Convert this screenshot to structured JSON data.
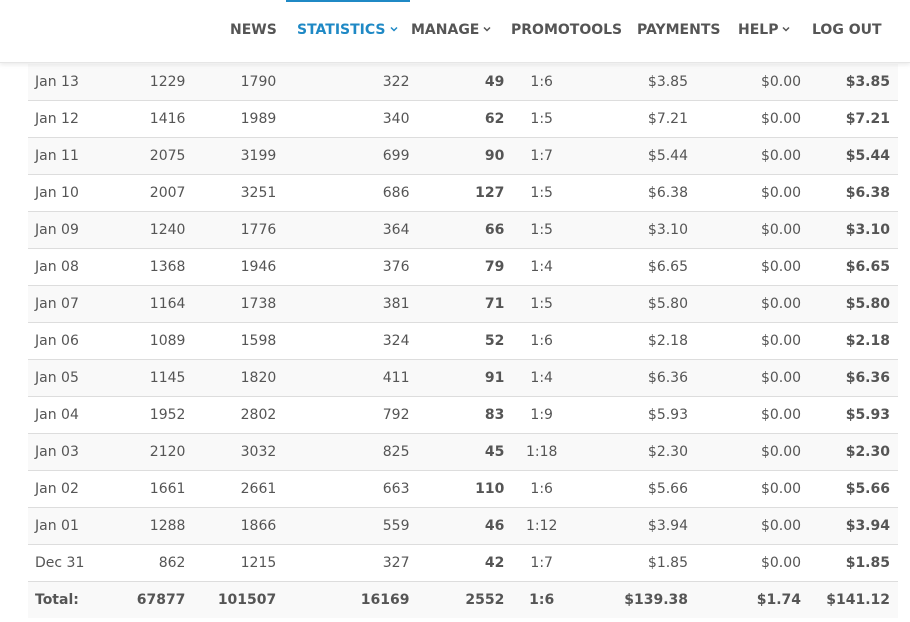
{
  "nav": {
    "items": [
      {
        "label": "NEWS",
        "dropdown": false,
        "active": false
      },
      {
        "label": "STATISTICS",
        "dropdown": true,
        "active": true
      },
      {
        "label": "MANAGE",
        "dropdown": true,
        "active": false
      },
      {
        "label": "PROMOTOOLS",
        "dropdown": false,
        "active": false
      },
      {
        "label": "PAYMENTS",
        "dropdown": false,
        "active": false
      },
      {
        "label": "HELP",
        "dropdown": true,
        "active": false
      },
      {
        "label": "LOG OUT",
        "dropdown": false,
        "active": false
      }
    ]
  },
  "colors": {
    "accent": "#1f89c5",
    "text": "#555555",
    "row_stripe": "#f9f9f9",
    "border": "#dddddd"
  },
  "table": {
    "rows": [
      [
        "Jan 13",
        "1229",
        "1790",
        "322",
        "49",
        "1:6",
        "$3.85",
        "$0.00",
        "$3.85"
      ],
      [
        "Jan 12",
        "1416",
        "1989",
        "340",
        "62",
        "1:5",
        "$7.21",
        "$0.00",
        "$7.21"
      ],
      [
        "Jan 11",
        "2075",
        "3199",
        "699",
        "90",
        "1:7",
        "$5.44",
        "$0.00",
        "$5.44"
      ],
      [
        "Jan 10",
        "2007",
        "3251",
        "686",
        "127",
        "1:5",
        "$6.38",
        "$0.00",
        "$6.38"
      ],
      [
        "Jan 09",
        "1240",
        "1776",
        "364",
        "66",
        "1:5",
        "$3.10",
        "$0.00",
        "$3.10"
      ],
      [
        "Jan 08",
        "1368",
        "1946",
        "376",
        "79",
        "1:4",
        "$6.65",
        "$0.00",
        "$6.65"
      ],
      [
        "Jan 07",
        "1164",
        "1738",
        "381",
        "71",
        "1:5",
        "$5.80",
        "$0.00",
        "$5.80"
      ],
      [
        "Jan 06",
        "1089",
        "1598",
        "324",
        "52",
        "1:6",
        "$2.18",
        "$0.00",
        "$2.18"
      ],
      [
        "Jan 05",
        "1145",
        "1820",
        "411",
        "91",
        "1:4",
        "$6.36",
        "$0.00",
        "$6.36"
      ],
      [
        "Jan 04",
        "1952",
        "2802",
        "792",
        "83",
        "1:9",
        "$5.93",
        "$0.00",
        "$5.93"
      ],
      [
        "Jan 03",
        "2120",
        "3032",
        "825",
        "45",
        "1:18",
        "$2.30",
        "$0.00",
        "$2.30"
      ],
      [
        "Jan 02",
        "1661",
        "2661",
        "663",
        "110",
        "1:6",
        "$5.66",
        "$0.00",
        "$5.66"
      ],
      [
        "Jan 01",
        "1288",
        "1866",
        "559",
        "46",
        "1:12",
        "$3.94",
        "$0.00",
        "$3.94"
      ],
      [
        "Dec 31",
        "862",
        "1215",
        "327",
        "42",
        "1:7",
        "$1.85",
        "$0.00",
        "$1.85"
      ]
    ],
    "total": [
      "Total:",
      "67877",
      "101507",
      "16169",
      "2552",
      "1:6",
      "$139.38",
      "$1.74",
      "$141.12"
    ]
  }
}
